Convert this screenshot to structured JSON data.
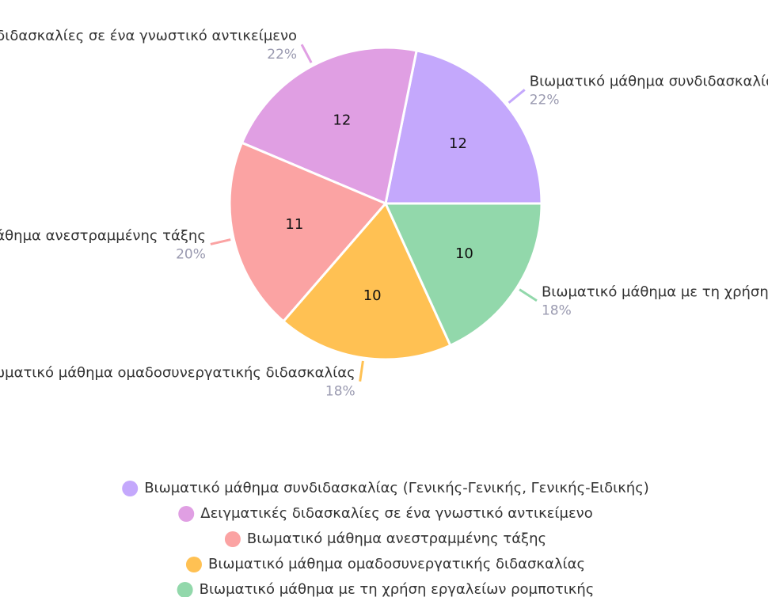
{
  "chart_data": {
    "type": "pie",
    "categories": [
      "Βιωματικό μάθημα συνδιδασκαλίας (Γενικής-Γενικής, Γενικής-Ειδικής)",
      "Δειγματικές διδασκαλίες σε ένα γνωστικό αντικείμενο",
      "Βιωματικό μάθημα ανεστραμμένης τάξης",
      "Βιωματικό μάθημα ομαδοσυνεργατικής διδασκαλίας",
      "Βιωματικό μάθημα με τη χρήση εργαλείων ρομποτικής"
    ],
    "values": [
      12,
      12,
      11,
      10,
      10
    ],
    "percent_labels": [
      "22%",
      "22%",
      "20%",
      "18%",
      "18%"
    ],
    "colors": [
      "#c4a8fc",
      "#e09fe3",
      "#fba3a3",
      "#ffc153",
      "#92d8ab"
    ],
    "legend": "bottom"
  }
}
